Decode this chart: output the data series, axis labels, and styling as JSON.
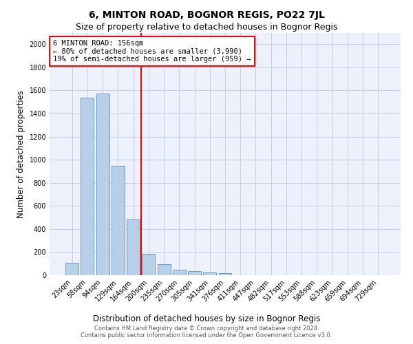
{
  "title": "6, MINTON ROAD, BOGNOR REGIS, PO22 7JL",
  "subtitle": "Size of property relative to detached houses in Bognor Regis",
  "xlabel": "Distribution of detached houses by size in Bognor Regis",
  "ylabel": "Number of detached properties",
  "categories": [
    "23sqm",
    "58sqm",
    "94sqm",
    "129sqm",
    "164sqm",
    "200sqm",
    "235sqm",
    "270sqm",
    "305sqm",
    "341sqm",
    "376sqm",
    "411sqm",
    "447sqm",
    "482sqm",
    "517sqm",
    "553sqm",
    "588sqm",
    "623sqm",
    "659sqm",
    "694sqm",
    "729sqm"
  ],
  "values": [
    110,
    1540,
    1570,
    950,
    480,
    183,
    97,
    47,
    37,
    22,
    15,
    0,
    0,
    0,
    0,
    0,
    0,
    0,
    0,
    0,
    0
  ],
  "bar_color": "#b8cfe8",
  "bar_edge_color": "#5a8fc0",
  "vline_x": 4.5,
  "vline_color": "red",
  "ylim": [
    0,
    2100
  ],
  "yticks": [
    0,
    200,
    400,
    600,
    800,
    1000,
    1200,
    1400,
    1600,
    1800,
    2000
  ],
  "annotation_title": "6 MINTON ROAD: 156sqm",
  "annotation_line1": "← 80% of detached houses are smaller (3,990)",
  "annotation_line2": "19% of semi-detached houses are larger (959) →",
  "annotation_box_facecolor": "#ffffff",
  "annotation_box_edge": "red",
  "footer_line1": "Contains HM Land Registry data © Crown copyright and database right 2024.",
  "footer_line2": "Contains public sector information licensed under the Open Government Licence v3.0.",
  "bg_color": "#edf1fb",
  "grid_color": "#c5cde8",
  "title_fontsize": 10,
  "subtitle_fontsize": 9,
  "tick_fontsize": 7,
  "ylabel_fontsize": 8.5,
  "xlabel_fontsize": 8.5,
  "annotation_fontsize": 7.5,
  "footer_fontsize": 6
}
